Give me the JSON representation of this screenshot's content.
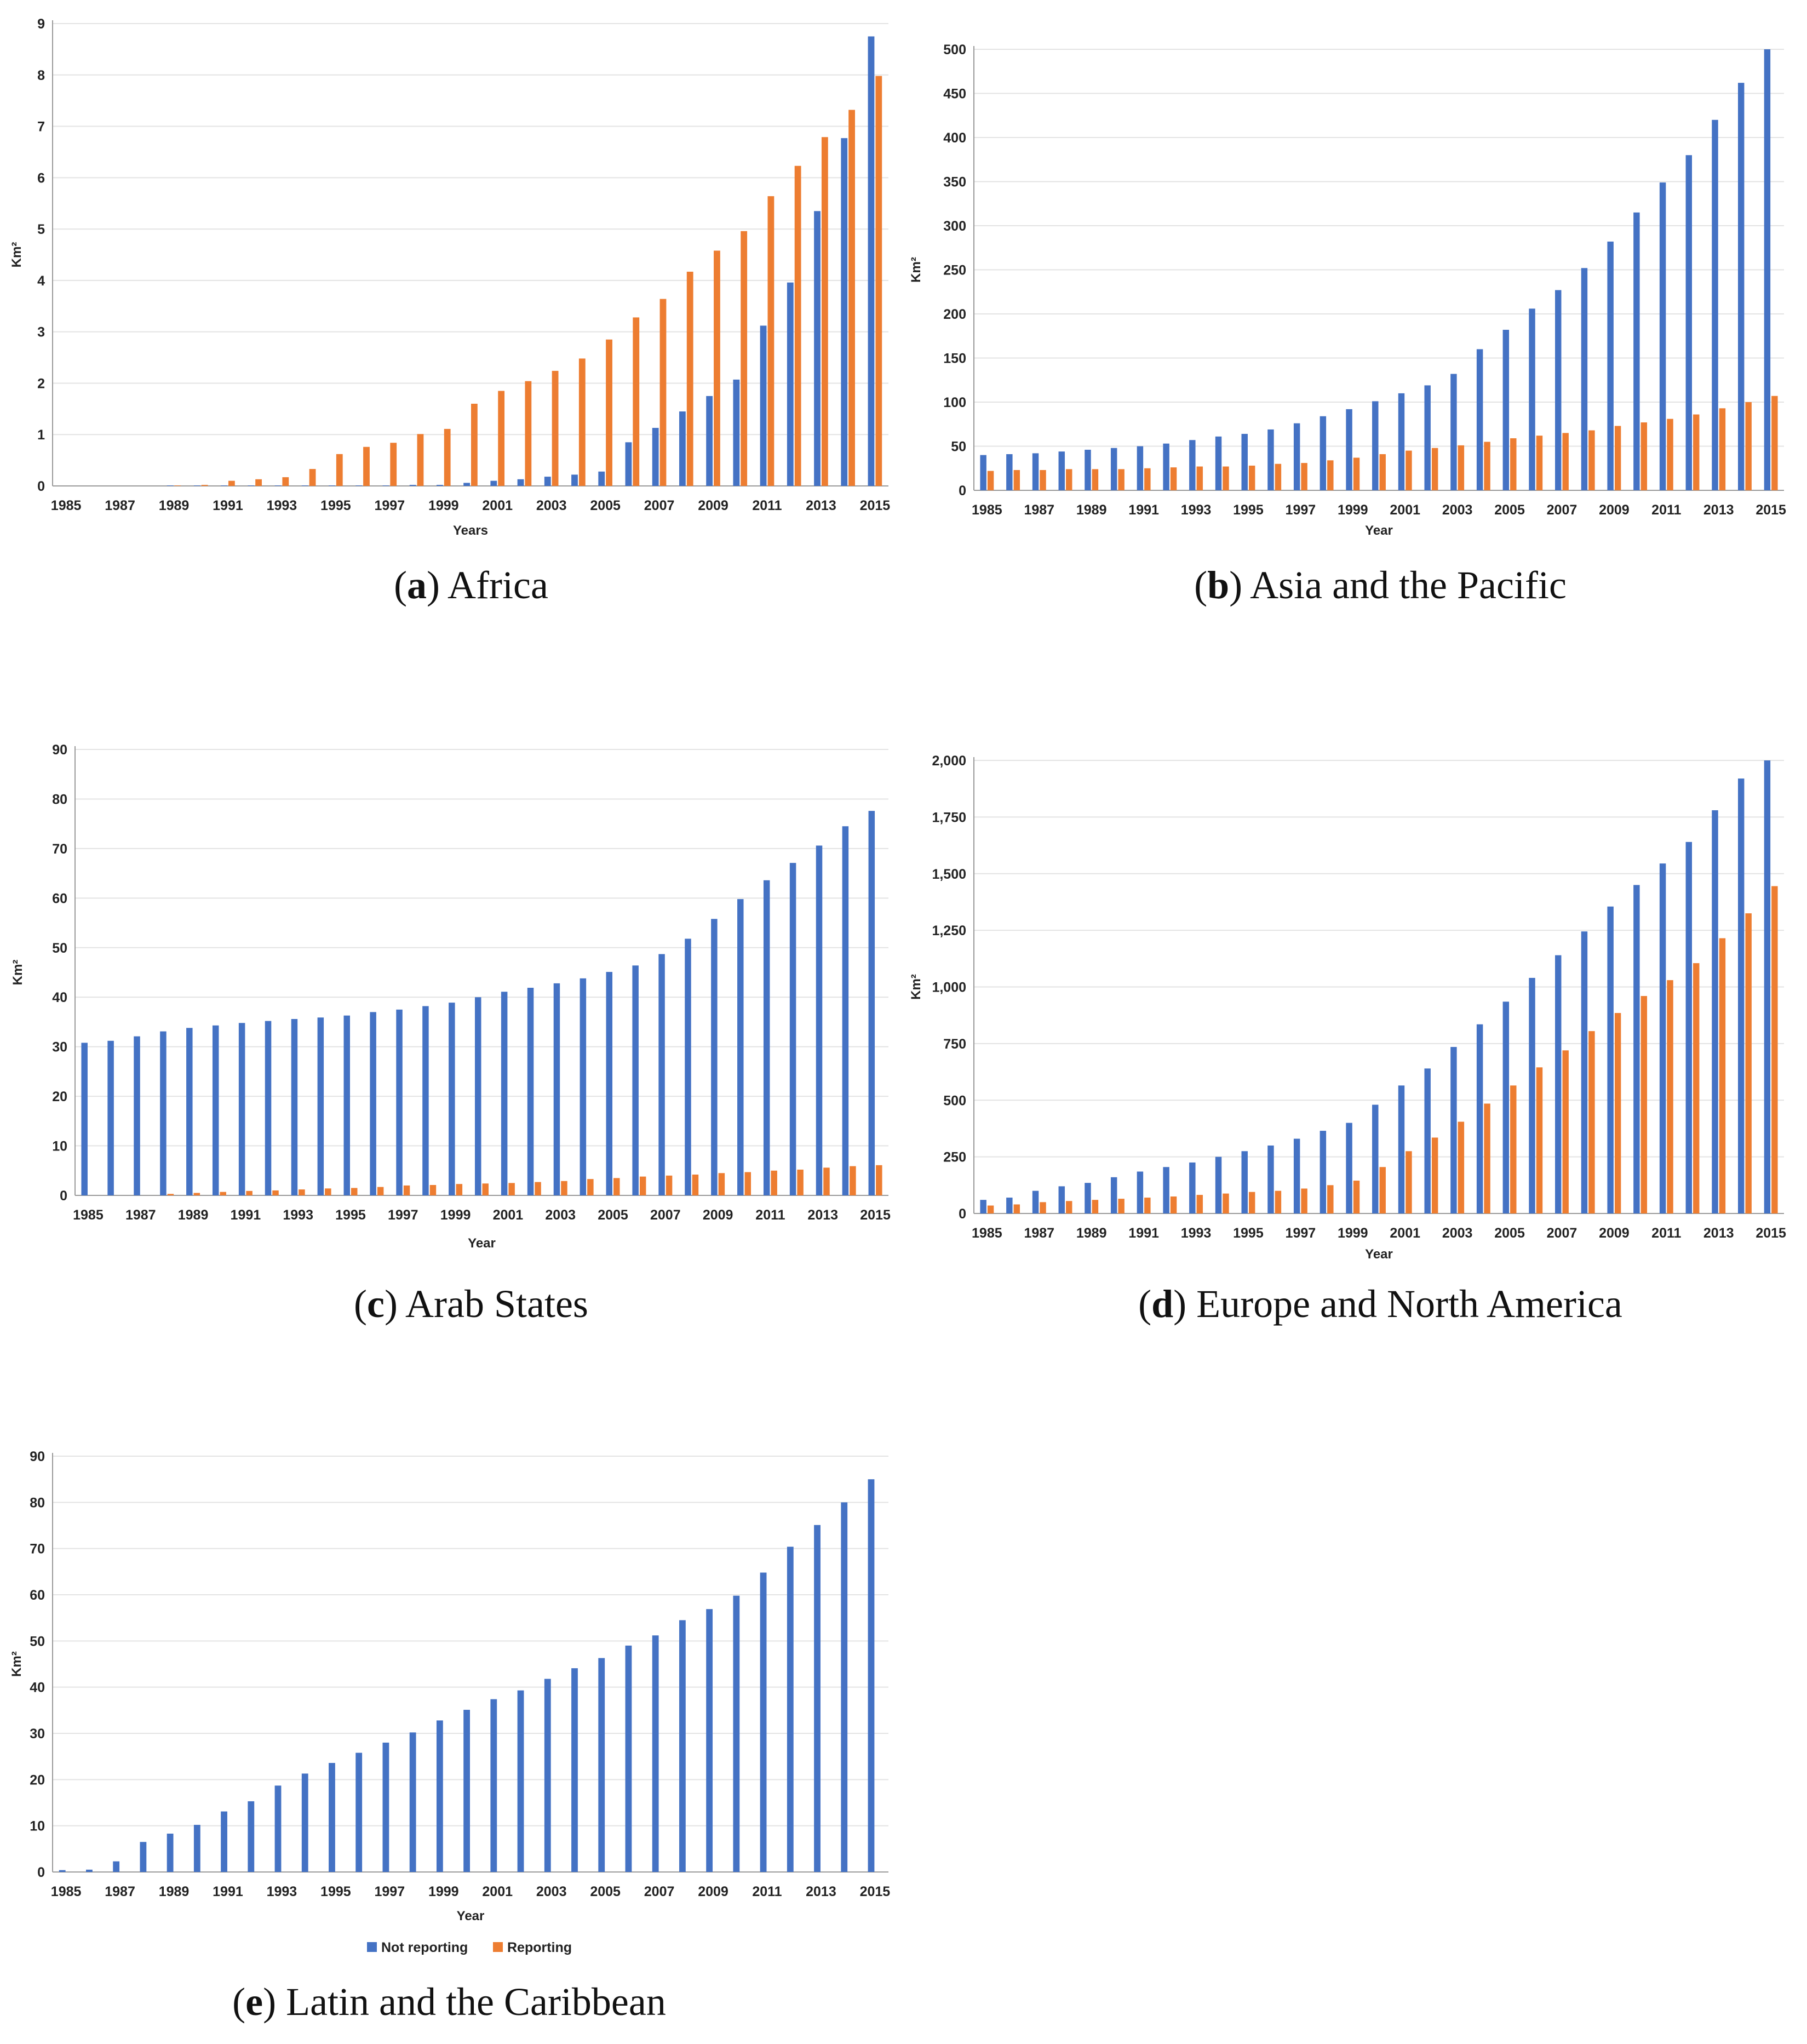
{
  "colors": {
    "not_reporting": "#4472C4",
    "reporting": "#ED7D31",
    "grid": "#e3e3e3",
    "axis": "#9a9a9a"
  },
  "legend": {
    "not_reporting": "Not reporting",
    "reporting": "Reporting"
  },
  "chart_data": [
    {
      "id": "a",
      "type": "bar",
      "caption_letter": "a",
      "caption_text": " Africa",
      "xlabel": "Years",
      "ylabel": "Km²",
      "ylim": [
        0,
        9
      ],
      "yticks": [
        "0",
        "1",
        "2",
        "3",
        "4",
        "5",
        "6",
        "7",
        "8",
        "9"
      ],
      "x": [
        1985,
        1986,
        1987,
        1988,
        1989,
        1990,
        1991,
        1992,
        1993,
        1994,
        1995,
        1996,
        1997,
        1998,
        1999,
        2000,
        2001,
        2002,
        2003,
        2004,
        2005,
        2006,
        2007,
        2008,
        2009,
        2010,
        2011,
        2012,
        2013,
        2014,
        2015
      ],
      "xtick_labels": [
        "1985",
        "1987",
        "1989",
        "1991",
        "1993",
        "1995",
        "1997",
        "1999",
        "2001",
        "2003",
        "2005",
        "2007",
        "2009",
        "2011",
        "2013",
        "2015"
      ],
      "series": [
        {
          "name": "Not reporting",
          "values": [
            0,
            0,
            0,
            0,
            0.01,
            0.01,
            0.01,
            0.01,
            0.01,
            0.01,
            0.01,
            0.01,
            0.01,
            0.02,
            0.02,
            0.06,
            0.1,
            0.13,
            0.18,
            0.22,
            0.28,
            0.85,
            1.13,
            1.45,
            1.75,
            2.07,
            3.12,
            3.96,
            5.35,
            6.77,
            8.75
          ]
        },
        {
          "name": "Reporting",
          "values": [
            0,
            0,
            0,
            0,
            0.01,
            0.02,
            0.1,
            0.13,
            0.17,
            0.33,
            0.62,
            0.76,
            0.84,
            1.01,
            1.11,
            1.6,
            1.85,
            2.04,
            2.24,
            2.48,
            2.85,
            3.28,
            3.64,
            4.17,
            4.58,
            4.96,
            5.64,
            6.23,
            6.79,
            7.32,
            7.98
          ]
        }
      ]
    },
    {
      "id": "b",
      "type": "bar",
      "caption_letter": "b",
      "caption_text": " Asia and the Pacific",
      "xlabel": "Year",
      "ylabel": "Km²",
      "ylim": [
        0,
        500
      ],
      "yticks": [
        "0",
        "50",
        "100",
        "150",
        "200",
        "250",
        "300",
        "350",
        "400",
        "450",
        "500"
      ],
      "x": [
        1985,
        1986,
        1987,
        1988,
        1989,
        1990,
        1991,
        1992,
        1993,
        1994,
        1995,
        1996,
        1997,
        1998,
        1999,
        2000,
        2001,
        2002,
        2003,
        2004,
        2005,
        2006,
        2007,
        2008,
        2009,
        2010,
        2011,
        2012,
        2013,
        2014,
        2015
      ],
      "xtick_labels": [
        "1985",
        "1987",
        "1989",
        "1991",
        "1993",
        "1995",
        "1997",
        "1999",
        "2001",
        "2003",
        "2005",
        "2007",
        "2009",
        "2011",
        "2013",
        "2015"
      ],
      "series": [
        {
          "name": "Not reporting",
          "values": [
            40,
            41,
            42,
            44,
            46,
            48,
            50,
            53,
            57,
            61,
            64,
            69,
            76,
            84,
            92,
            101,
            110,
            119,
            132,
            160,
            182,
            206,
            227,
            252,
            282,
            315,
            349,
            380,
            420,
            462,
            500
          ]
        },
        {
          "name": "Reporting",
          "values": [
            22,
            23,
            23,
            24,
            24,
            24,
            25,
            26,
            27,
            27,
            28,
            30,
            31,
            34,
            37,
            41,
            45,
            48,
            51,
            55,
            59,
            62,
            65,
            68,
            73,
            77,
            81,
            86,
            93,
            100,
            107
          ]
        }
      ]
    },
    {
      "id": "c",
      "type": "bar",
      "caption_letter": "c",
      "caption_text": " Arab States",
      "xlabel": "Year",
      "ylabel": "Km²",
      "ylim": [
        0,
        90
      ],
      "yticks": [
        "0",
        "10",
        "20",
        "30",
        "40",
        "50",
        "60",
        "70",
        "80",
        "90"
      ],
      "x": [
        1985,
        1986,
        1987,
        1988,
        1989,
        1990,
        1991,
        1992,
        1993,
        1994,
        1995,
        1996,
        1997,
        1998,
        1999,
        2000,
        2001,
        2002,
        2003,
        2004,
        2005,
        2006,
        2007,
        2008,
        2009,
        2010,
        2011,
        2012,
        2013,
        2014,
        2015
      ],
      "xtick_labels": [
        "1985",
        "1987",
        "1989",
        "1991",
        "1993",
        "1995",
        "1997",
        "1999",
        "2001",
        "2003",
        "2005",
        "2007",
        "2009",
        "2011",
        "2013",
        "2015"
      ],
      "series": [
        {
          "name": "Not reporting",
          "values": [
            30.8,
            31.2,
            32.1,
            33.1,
            33.8,
            34.3,
            34.8,
            35.2,
            35.6,
            35.9,
            36.3,
            37,
            37.5,
            38.2,
            38.9,
            40,
            41.1,
            41.9,
            42.8,
            43.8,
            45.1,
            46.4,
            48.7,
            51.8,
            55.8,
            59.8,
            63.6,
            67.1,
            70.6,
            74.5,
            77.6
          ]
        },
        {
          "name": "Reporting",
          "values": [
            0,
            0,
            0,
            0.3,
            0.5,
            0.7,
            0.9,
            1,
            1.2,
            1.4,
            1.5,
            1.7,
            2,
            2.1,
            2.3,
            2.4,
            2.5,
            2.7,
            2.9,
            3.3,
            3.5,
            3.8,
            4,
            4.2,
            4.5,
            4.7,
            5,
            5.2,
            5.6,
            5.9,
            6.1
          ]
        }
      ]
    },
    {
      "id": "d",
      "type": "bar",
      "caption_letter": "d",
      "caption_text": " Europe and North America",
      "xlabel": "Year",
      "ylabel": "Km²",
      "ylim": [
        0,
        2000
      ],
      "yticks": [
        "0",
        "250",
        "500",
        "750",
        "1,000",
        "1,250",
        "1,500",
        "1,750",
        "2,000"
      ],
      "x": [
        1985,
        1986,
        1987,
        1988,
        1989,
        1990,
        1991,
        1992,
        1993,
        1994,
        1995,
        1996,
        1997,
        1998,
        1999,
        2000,
        2001,
        2002,
        2003,
        2004,
        2005,
        2006,
        2007,
        2008,
        2009,
        2010,
        2011,
        2012,
        2013,
        2014,
        2015
      ],
      "xtick_labels": [
        "1985",
        "1987",
        "1989",
        "1991",
        "1993",
        "1995",
        "1997",
        "1999",
        "2001",
        "2003",
        "2005",
        "2007",
        "2009",
        "2011",
        "2013",
        "2015"
      ],
      "series": [
        {
          "name": "Not reporting",
          "values": [
            60,
            70,
            100,
            120,
            135,
            160,
            185,
            205,
            225,
            250,
            275,
            300,
            330,
            365,
            400,
            480,
            565,
            640,
            735,
            835,
            935,
            1040,
            1140,
            1245,
            1355,
            1450,
            1545,
            1640,
            1780,
            1920,
            2000
          ]
        },
        {
          "name": "Reporting",
          "values": [
            35,
            40,
            50,
            55,
            60,
            65,
            70,
            75,
            82,
            88,
            95,
            100,
            110,
            125,
            145,
            205,
            275,
            335,
            405,
            485,
            565,
            645,
            720,
            805,
            885,
            960,
            1030,
            1105,
            1215,
            1325,
            1445
          ]
        }
      ]
    },
    {
      "id": "e",
      "type": "bar",
      "caption_letter": "e",
      "caption_text": " Latin and the Caribbean",
      "xlabel": "Year",
      "ylabel": "Km²",
      "ylim": [
        0,
        90
      ],
      "yticks": [
        "0",
        "10",
        "20",
        "30",
        "40",
        "50",
        "60",
        "70",
        "80",
        "90"
      ],
      "x": [
        1985,
        1986,
        1987,
        1988,
        1989,
        1990,
        1991,
        1992,
        1993,
        1994,
        1995,
        1996,
        1997,
        1998,
        1999,
        2000,
        2001,
        2002,
        2003,
        2004,
        2005,
        2006,
        2007,
        2008,
        2009,
        2010,
        2011,
        2012,
        2013,
        2014,
        2015
      ],
      "xtick_labels": [
        "1985",
        "1987",
        "1989",
        "1991",
        "1993",
        "1995",
        "1997",
        "1999",
        "2001",
        "2003",
        "2005",
        "2007",
        "2009",
        "2011",
        "2013",
        "2015"
      ],
      "series": [
        {
          "name": "Not reporting",
          "values": [
            0.4,
            0.5,
            2.3,
            6.5,
            8.3,
            10.2,
            13.1,
            15.3,
            18.7,
            21.3,
            23.6,
            25.8,
            28,
            30.2,
            32.8,
            35.1,
            37.4,
            39.3,
            41.8,
            44.1,
            46.3,
            49,
            51.2,
            54.5,
            56.9,
            59.8,
            64.8,
            70.4,
            75.1,
            80,
            85
          ]
        },
        {
          "name": "Reporting",
          "values": [
            0,
            0,
            0,
            0,
            0,
            0,
            0,
            0,
            0,
            0,
            0,
            0,
            0,
            0,
            0,
            0,
            0,
            0,
            0,
            0,
            0,
            0,
            0,
            0,
            0,
            0,
            0,
            0,
            0,
            0,
            0
          ]
        }
      ]
    }
  ]
}
